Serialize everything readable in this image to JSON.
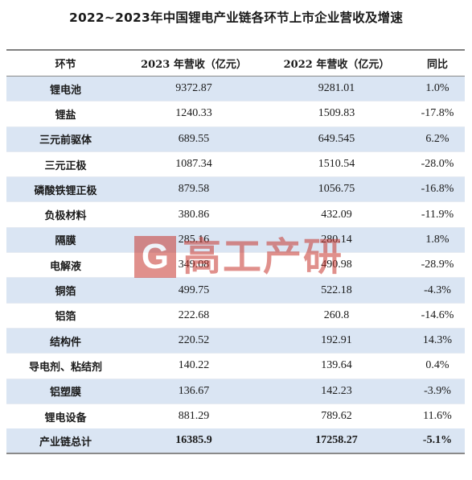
{
  "title": "2022~2023年中国锂电产业链各环节上市企业营收及增速",
  "columns": [
    "环节",
    "2023 年营收（亿元）",
    "2022 年营收（亿元）",
    "同比"
  ],
  "rows": [
    {
      "name": "锂电池",
      "rev2023": "9372.87",
      "rev2022": "9281.01",
      "yoy": "1.0%"
    },
    {
      "name": "锂盐",
      "rev2023": "1240.33",
      "rev2022": "1509.83",
      "yoy": "-17.8%"
    },
    {
      "name": "三元前驱体",
      "rev2023": "689.55",
      "rev2022": "649.545",
      "yoy": "6.2%"
    },
    {
      "name": "三元正极",
      "rev2023": "1087.34",
      "rev2022": "1510.54",
      "yoy": "-28.0%"
    },
    {
      "name": "磷酸铁锂正极",
      "rev2023": "879.58",
      "rev2022": "1056.75",
      "yoy": "-16.8%"
    },
    {
      "name": "负极材料",
      "rev2023": "380.86",
      "rev2022": "432.09",
      "yoy": "-11.9%"
    },
    {
      "name": "隔膜",
      "rev2023": "285.16",
      "rev2022": "280.14",
      "yoy": "1.8%"
    },
    {
      "name": "电解液",
      "rev2023": "349.08",
      "rev2022": "490.98",
      "yoy": "-28.9%"
    },
    {
      "name": "铜箔",
      "rev2023": "499.75",
      "rev2022": "522.18",
      "yoy": "-4.3%"
    },
    {
      "name": "铝箔",
      "rev2023": "222.68",
      "rev2022": "260.8",
      "yoy": "-14.6%"
    },
    {
      "name": "结构件",
      "rev2023": "220.52",
      "rev2022": "192.91",
      "yoy": "14.3%"
    },
    {
      "name": "导电剂、粘结剂",
      "rev2023": "140.22",
      "rev2022": "139.64",
      "yoy": "0.4%"
    },
    {
      "name": "铝塑膜",
      "rev2023": "136.67",
      "rev2022": "142.23",
      "yoy": "-3.9%"
    },
    {
      "name": "锂电设备",
      "rev2023": "881.29",
      "rev2022": "789.62",
      "yoy": "11.6%"
    }
  ],
  "total": {
    "name": "产业链总计",
    "rev2023": "16385.9",
    "rev2022": "17258.27",
    "yoy": "-5.1%"
  },
  "watermark": {
    "logo_letter": "G",
    "text": "高工产研"
  },
  "colors": {
    "band": "#dae5f3",
    "watermark_red": "#c7372f",
    "rule": "#808080"
  }
}
